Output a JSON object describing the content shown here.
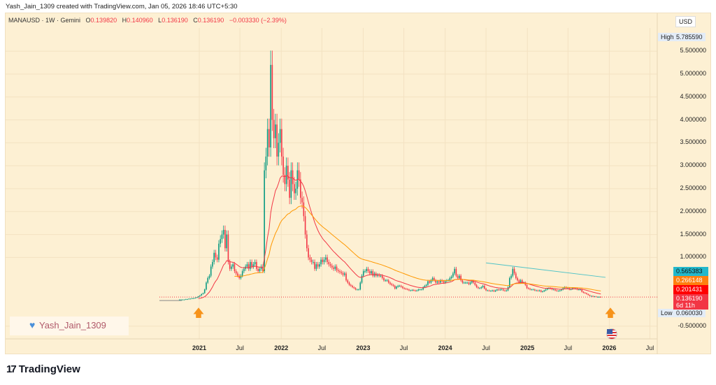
{
  "credit": "Yash_Jain_1309 created with TradingView.com, Jan 05, 2026 18:46 UTC+5:30",
  "legend": {
    "symbol": "MANAUSD · 1W · Gemini",
    "o_label": "O",
    "o": "0.139820",
    "h_label": "H",
    "h": "0.140960",
    "l_label": "L",
    "l": "0.136190",
    "c_label": "C",
    "c": "0.136190",
    "change": "−0.003330 (−2.39%)"
  },
  "currency": "USD",
  "high": {
    "label": "High",
    "value": "5.785590"
  },
  "low": {
    "label": "Low",
    "value": "0.060030"
  },
  "badges": [
    {
      "value": "0.565383",
      "color": "#22b8cc"
    },
    {
      "value": "0.266148",
      "color": "#ff7f0e"
    },
    {
      "value": "0.201431",
      "color": "#ff0000"
    },
    {
      "value": "0.136190",
      "color": "#f23645",
      "sub": "6d 11h"
    }
  ],
  "watermark": "Yash_Jain_1309",
  "brand": "TradingView",
  "colors": {
    "up": "#089981",
    "down": "#f23645",
    "ema_fast": "#f23645",
    "ema_slow": "#ff9800",
    "trendline": "#4fc3c7",
    "bg": "#fdf0d3"
  },
  "icons": [
    "heart-icon",
    "arrow-up-icon",
    "us-flag-icon",
    "tradingview-logo-icon"
  ],
  "chart_data": {
    "type": "candlestick",
    "y_ticks": [
      "5.500000",
      "5.000000",
      "4.500000",
      "4.000000",
      "3.500000",
      "3.000000",
      "2.500000",
      "2.000000",
      "1.500000",
      "1.000000",
      "-0.500000"
    ],
    "y_tick_values": [
      5.5,
      5,
      4.5,
      4,
      3.5,
      3,
      2.5,
      2,
      1.5,
      1,
      -0.5
    ],
    "x_ticks": [
      "2021",
      "Jul",
      "2022",
      "Jul",
      "2023",
      "Jul",
      "2024",
      "Jul",
      "2025",
      "Jul",
      "2026",
      "Jul"
    ],
    "x_tick_dates": [
      "2021-01-01",
      "2021-07-01",
      "2022-01-01",
      "2022-07-01",
      "2023-01-01",
      "2023-07-01",
      "2024-01-01",
      "2024-07-01",
      "2025-01-01",
      "2025-07-01",
      "2026-01-01",
      "2026-07-01"
    ],
    "start_week": "2020-10-05",
    "weekly_close": [
      0.08,
      0.08,
      0.08,
      0.08,
      0.09,
      0.09,
      0.1,
      0.1,
      0.11,
      0.11,
      0.12,
      0.13,
      0.15,
      0.17,
      0.2,
      0.22,
      0.3,
      0.45,
      0.55,
      0.6,
      0.8,
      0.9,
      1.1,
      1.0,
      0.95,
      1.3,
      1.4,
      1.5,
      1.6,
      1.2,
      1.5,
      0.9,
      0.75,
      0.8,
      0.85,
      0.7,
      0.65,
      0.6,
      0.55,
      0.6,
      0.7,
      0.75,
      0.8,
      0.85,
      0.75,
      0.9,
      0.8,
      0.85,
      0.9,
      0.75,
      0.7,
      0.75,
      0.8,
      0.7,
      2.9,
      3.2,
      3.8,
      3.4,
      5.2,
      4.0,
      3.6,
      3.9,
      3.2,
      3.5,
      3.8,
      3.2,
      2.8,
      2.6,
      3.0,
      2.7,
      2.3,
      2.9,
      2.6,
      2.4,
      2.5,
      2.9,
      2.7,
      2.3,
      2.2,
      1.9,
      1.5,
      1.2,
      1.0,
      0.95,
      0.9,
      0.9,
      0.75,
      0.85,
      0.8,
      0.85,
      0.95,
      0.9,
      0.95,
      1.0,
      0.9,
      0.85,
      0.82,
      0.78,
      0.75,
      0.8,
      0.72,
      0.7,
      0.68,
      0.66,
      0.62,
      0.65,
      0.5,
      0.45,
      0.4,
      0.38,
      0.35,
      0.33,
      0.3,
      0.3,
      0.3,
      0.45,
      0.6,
      0.7,
      0.7,
      0.75,
      0.7,
      0.65,
      0.7,
      0.6,
      0.65,
      0.6,
      0.62,
      0.6,
      0.6,
      0.55,
      0.5,
      0.5,
      0.5,
      0.45,
      0.42,
      0.4,
      0.38,
      0.32,
      0.36,
      0.38,
      0.38,
      0.36,
      0.33,
      0.32,
      0.31,
      0.3,
      0.28,
      0.28,
      0.29,
      0.28,
      0.27,
      0.28,
      0.3,
      0.3,
      0.3,
      0.35,
      0.38,
      0.4,
      0.48,
      0.45,
      0.5,
      0.55,
      0.5,
      0.45,
      0.48,
      0.45,
      0.5,
      0.48,
      0.45,
      0.48,
      0.5,
      0.5,
      0.55,
      0.58,
      0.65,
      0.75,
      0.6,
      0.55,
      0.6,
      0.5,
      0.45,
      0.45,
      0.45,
      0.45,
      0.42,
      0.45,
      0.48,
      0.45,
      0.4,
      0.35,
      0.33,
      0.33,
      0.35,
      0.38,
      0.32,
      0.28,
      0.28,
      0.27,
      0.27,
      0.28,
      0.26,
      0.28,
      0.3,
      0.29,
      0.3,
      0.3,
      0.28,
      0.27,
      0.28,
      0.35,
      0.55,
      0.6,
      0.75,
      0.65,
      0.55,
      0.5,
      0.45,
      0.5,
      0.45,
      0.45,
      0.4,
      0.33,
      0.32,
      0.3,
      0.3,
      0.3,
      0.28,
      0.28,
      0.27,
      0.28,
      0.25,
      0.26,
      0.28,
      0.3,
      0.32,
      0.33,
      0.32,
      0.3,
      0.3,
      0.28,
      0.27,
      0.27,
      0.28,
      0.3,
      0.33,
      0.35,
      0.33,
      0.33,
      0.3,
      0.31,
      0.33,
      0.32,
      0.32,
      0.3,
      0.3,
      0.3,
      0.25,
      0.23,
      0.22,
      0.2,
      0.18,
      0.16,
      0.16,
      0.15,
      0.15,
      0.14,
      0.14,
      0.14,
      0.136
    ],
    "high": 5.78559,
    "low": 0.06003,
    "last": 0.13619,
    "trendline": [
      {
        "date": "2024-07-01",
        "value": 0.88
      },
      {
        "date": "2025-12-15",
        "value": 0.565
      }
    ],
    "price_line": 0.13619,
    "ylim": [
      -0.8,
      6.0
    ]
  }
}
